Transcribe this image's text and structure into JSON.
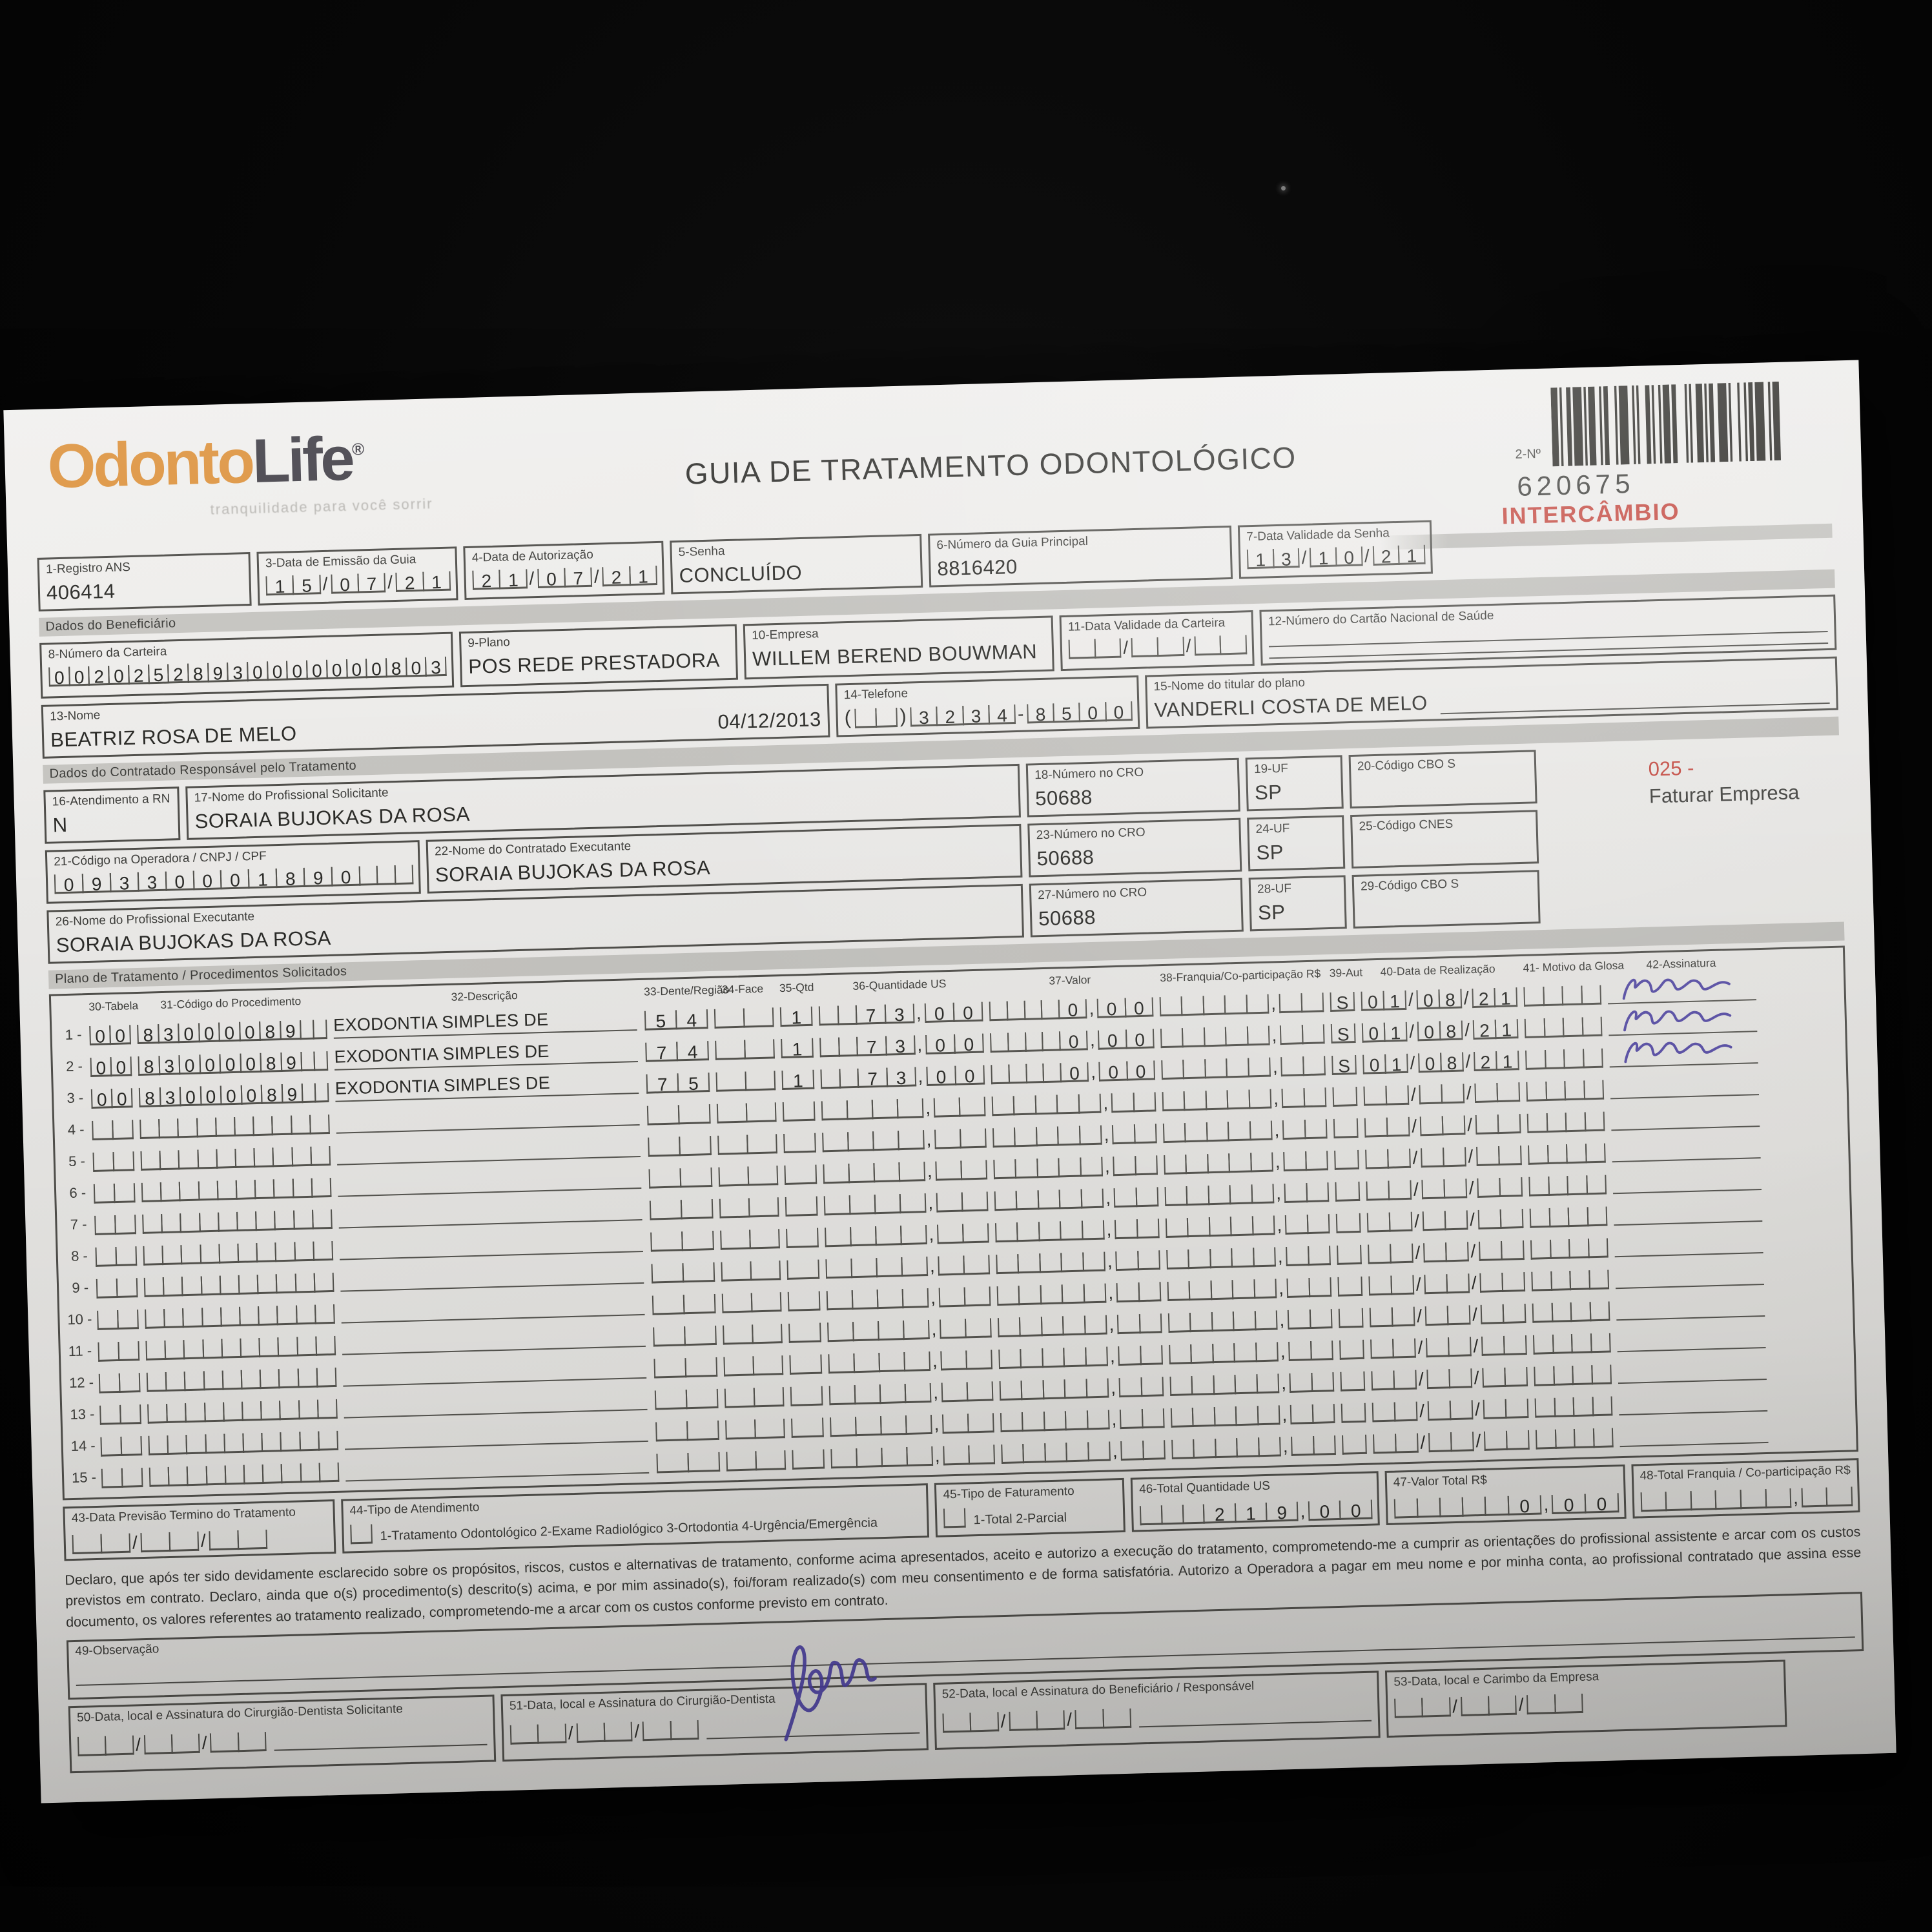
{
  "brand": {
    "logo_primary": "Odonto",
    "logo_secondary": "Life",
    "trademark": "®",
    "tagline": "tranquilidade para você sorrir"
  },
  "title": "GUIA DE TRATAMENTO ODONTOLÓGICO",
  "guide_number": {
    "label": "2-Nº",
    "value": "620675",
    "stamp": "INTERCÂMBIO"
  },
  "top_fields": {
    "registro_ans": {
      "label": "1-Registro ANS",
      "value": "406414"
    },
    "emissao": {
      "label": "3-Data de Emissão da Guia",
      "comb": {
        "g": [
          "15",
          "07",
          "21"
        ],
        "s": "/"
      }
    },
    "autorizacao": {
      "label": "4-Data de Autorização",
      "comb": {
        "g": [
          "21",
          "07",
          "21"
        ],
        "s": "/"
      }
    },
    "senha": {
      "label": "5-Senha",
      "value": "CONCLUÍDO"
    },
    "guia_principal": {
      "label": "6-Número da Guia Principal",
      "value": "8816420"
    },
    "validade_senha": {
      "label": "7-Data Validade da Senha",
      "comb": {
        "g": [
          "13",
          "10",
          "21"
        ],
        "s": "/"
      }
    }
  },
  "sections": {
    "beneficiario": "Dados do Beneficiário",
    "contratado": "Dados do Contratado Responsável pelo Tratamento",
    "plano": "Plano de Tratamento / Procedimentos Solicitados"
  },
  "beneficiario": {
    "carteira": {
      "label": "8-Número da Carteira",
      "comb": {
        "g": [
          "00202528930000000803"
        ],
        "s": ""
      }
    },
    "plano": {
      "label": "9-Plano",
      "value": "POS REDE PRESTADORA"
    },
    "empresa": {
      "label": "10-Empresa",
      "value": "WILLEM BEREND BOUWMAN"
    },
    "validade_carteira": {
      "label": "11-Data Validade da Carteira",
      "comb": {
        "g": [
          "  ",
          "  ",
          "  "
        ],
        "s": "/"
      }
    },
    "cartao_saude": {
      "label": "12-Número do Cartão Nacional de Saúde",
      "value": ""
    },
    "nome": {
      "label": "13-Nome",
      "value": "BEATRIZ ROSA DE MELO",
      "date": "04/12/2013"
    },
    "telefone": {
      "label": "14-Telefone",
      "open": "(",
      "close": ")",
      "ddd": {
        "g": [
          "  "
        ],
        "s": ""
      },
      "numero": {
        "g": [
          "3234",
          "8500"
        ],
        "s": "-"
      }
    },
    "titular": {
      "label": "15-Nome do titular do plano",
      "value": "VANDERLI COSTA DE MELO"
    }
  },
  "contratado": {
    "rn": {
      "label": "16-Atendimento a RN",
      "value": "N"
    },
    "solicitante": {
      "label": "17-Nome do Profissional Solicitante",
      "value": "SORAIA BUJOKAS DA ROSA"
    },
    "cro18": {
      "label": "18-Número no CRO",
      "value": "50688"
    },
    "uf19": {
      "label": "19-UF",
      "value": "SP"
    },
    "cbo20": {
      "label": "20-Código CBO S",
      "value": ""
    },
    "fatura_code": "025 -",
    "fatura_text": "Faturar Empresa",
    "cod_operadora": {
      "label": "21-Código na Operadora / CNPJ / CPF",
      "comb": {
        "g": [
          "09330001890   "
        ],
        "s": ""
      }
    },
    "executante": {
      "label": "22-Nome do Contratado Executante",
      "value": "SORAIA BUJOKAS DA ROSA"
    },
    "cro23": {
      "label": "23-Número no CRO",
      "value": "50688"
    },
    "uf24": {
      "label": "24-UF",
      "value": "SP"
    },
    "cnes25": {
      "label": "25-Código CNES",
      "value": ""
    },
    "prof_executante": {
      "label": "26-Nome do Profissional Executante",
      "value": "SORAIA BUJOKAS DA ROSA"
    },
    "cro27": {
      "label": "27-Número no CRO",
      "value": "50688"
    },
    "uf28": {
      "label": "28-UF",
      "value": "SP"
    },
    "cbo29": {
      "label": "29-Código CBO S",
      "value": ""
    }
  },
  "table": {
    "headers": [
      "30-Tabela",
      "31-Código do Procedimento",
      "32-Descrição",
      "33-Dente/Região",
      "34-Face",
      "35-Qtd",
      "36-Quantidade US",
      "37-Valor",
      "38-Franquia/Co-participação R$",
      "39-Aut",
      "40-Data de Realização",
      "41- Motivo da Glosa",
      "42-Assinatura"
    ],
    "rows": [
      {
        "num": "1",
        "tabela": "00",
        "codigo": "83000089",
        "descricao": "EXODONTIA SIMPLES DE",
        "dente": "54",
        "face": "",
        "qtd": "1",
        "qtd_us": "73,00",
        "valor": "0,00",
        "franquia": "",
        "aut": "S",
        "data": "01/08/21",
        "motivo": "",
        "signed": true
      },
      {
        "num": "2",
        "tabela": "00",
        "codigo": "83000089",
        "descricao": "EXODONTIA SIMPLES DE",
        "dente": "74",
        "face": "",
        "qtd": "1",
        "qtd_us": "73,00",
        "valor": "0,00",
        "franquia": "",
        "aut": "S",
        "data": "01/08/21",
        "motivo": "",
        "signed": true
      },
      {
        "num": "3",
        "tabela": "00",
        "codigo": "83000089",
        "descricao": "EXODONTIA SIMPLES DE",
        "dente": "75",
        "face": "",
        "qtd": "1",
        "qtd_us": "73,00",
        "valor": "0,00",
        "franquia": "",
        "aut": "S",
        "data": "01/08/21",
        "motivo": "",
        "signed": true
      },
      {
        "num": "4",
        "tabela": "",
        "codigo": "",
        "descricao": "",
        "dente": "",
        "face": "",
        "qtd": "",
        "qtd_us": "",
        "valor": "",
        "franquia": "",
        "aut": "",
        "data": "",
        "motivo": "",
        "signed": false
      },
      {
        "num": "5",
        "tabela": "",
        "codigo": "",
        "descricao": "",
        "dente": "",
        "face": "",
        "qtd": "",
        "qtd_us": "",
        "valor": "",
        "franquia": "",
        "aut": "",
        "data": "",
        "motivo": "",
        "signed": false
      },
      {
        "num": "6",
        "tabela": "",
        "codigo": "",
        "descricao": "",
        "dente": "",
        "face": "",
        "qtd": "",
        "qtd_us": "",
        "valor": "",
        "franquia": "",
        "aut": "",
        "data": "",
        "motivo": "",
        "signed": false
      },
      {
        "num": "7",
        "tabela": "",
        "codigo": "",
        "descricao": "",
        "dente": "",
        "face": "",
        "qtd": "",
        "qtd_us": "",
        "valor": "",
        "franquia": "",
        "aut": "",
        "data": "",
        "motivo": "",
        "signed": false
      },
      {
        "num": "8",
        "tabela": "",
        "codigo": "",
        "descricao": "",
        "dente": "",
        "face": "",
        "qtd": "",
        "qtd_us": "",
        "valor": "",
        "franquia": "",
        "aut": "",
        "data": "",
        "motivo": "",
        "signed": false
      },
      {
        "num": "9",
        "tabela": "",
        "codigo": "",
        "descricao": "",
        "dente": "",
        "face": "",
        "qtd": "",
        "qtd_us": "",
        "valor": "",
        "franquia": "",
        "aut": "",
        "data": "",
        "motivo": "",
        "signed": false
      },
      {
        "num": "10",
        "tabela": "",
        "codigo": "",
        "descricao": "",
        "dente": "",
        "face": "",
        "qtd": "",
        "qtd_us": "",
        "valor": "",
        "franquia": "",
        "aut": "",
        "data": "",
        "motivo": "",
        "signed": false
      },
      {
        "num": "11",
        "tabela": "",
        "codigo": "",
        "descricao": "",
        "dente": "",
        "face": "",
        "qtd": "",
        "qtd_us": "",
        "valor": "",
        "franquia": "",
        "aut": "",
        "data": "",
        "motivo": "",
        "signed": false
      },
      {
        "num": "12",
        "tabela": "",
        "codigo": "",
        "descricao": "",
        "dente": "",
        "face": "",
        "qtd": "",
        "qtd_us": "",
        "valor": "",
        "franquia": "",
        "aut": "",
        "data": "",
        "motivo": "",
        "signed": false
      },
      {
        "num": "13",
        "tabela": "",
        "codigo": "",
        "descricao": "",
        "dente": "",
        "face": "",
        "qtd": "",
        "qtd_us": "",
        "valor": "",
        "franquia": "",
        "aut": "",
        "data": "",
        "motivo": "",
        "signed": false
      },
      {
        "num": "14",
        "tabela": "",
        "codigo": "",
        "descricao": "",
        "dente": "",
        "face": "",
        "qtd": "",
        "qtd_us": "",
        "valor": "",
        "franquia": "",
        "aut": "",
        "data": "",
        "motivo": "",
        "signed": false
      },
      {
        "num": "15",
        "tabela": "",
        "codigo": "",
        "descricao": "",
        "dente": "",
        "face": "",
        "qtd": "",
        "qtd_us": "",
        "valor": "",
        "franquia": "",
        "aut": "",
        "data": "",
        "motivo": "",
        "signed": false
      }
    ]
  },
  "totals": {
    "previsao": {
      "label": "43-Data Previsão Termino do Tratamento",
      "comb": {
        "g": [
          "  ",
          "  ",
          "  "
        ],
        "s": "/"
      }
    },
    "tipo_atendimento": {
      "label": "44-Tipo de Atendimento",
      "options": "1-Tratamento Odontológico  2-Exame Radiológico  3-Ortodontia  4-Urgência/Emergência"
    },
    "tipo_faturamento": {
      "label": "45-Tipo de Faturamento",
      "options": "1-Total  2-Parcial"
    },
    "total_us": {
      "label": "46-Total Quantidade US",
      "comb": {
        "g": [
          "   219",
          "00"
        ],
        "s": ","
      }
    },
    "valor_total": {
      "label": "47-Valor Total R$",
      "comb": {
        "g": [
          "     0",
          "00"
        ],
        "s": ","
      }
    },
    "total_franquia": {
      "label": "48-Total Franquia / Co-participação R$",
      "comb": {
        "g": [
          "      ",
          "  "
        ],
        "s": ","
      }
    }
  },
  "declaration": "Declaro, que após ter sido devidamente esclarecido sobre os propósitos, riscos, custos e alternativas de tratamento, conforme acima apresentados, aceito e autorizo a execução do tratamento, comprometendo-me a cumprir as orientações do profissional assistente e arcar com os custos previstos em contrato. Declaro, ainda que o(s) procedimento(s) descrito(s) acima, e por mim assinado(s), foi/foram realizado(s) com meu consentimento e de forma satisfatória. Autorizo a Operadora a pagar em meu nome e por minha conta, ao profissional contratado que assina esse documento, os valores referentes ao tratamento realizado, comprometendo-me a arcar com os custos conforme previsto em contrato.",
  "observacao": {
    "label": "49-Observação"
  },
  "signature_boxes": {
    "s50": {
      "label": "50-Data, local e Assinatura do Cirurgião-Dentista Solicitante",
      "comb": {
        "g": [
          "  ",
          "  ",
          "  "
        ],
        "s": "/"
      }
    },
    "s51": {
      "label": "51-Data, local e Assinatura do Cirurgião-Dentista",
      "comb": {
        "g": [
          "  ",
          "  ",
          "  "
        ],
        "s": "/"
      }
    },
    "s52": {
      "label": "52-Data, local e Assinatura do Beneficiário / Responsável",
      "comb": {
        "g": [
          "  ",
          "  ",
          "  "
        ],
        "s": "/"
      }
    },
    "s53": {
      "label": "53-Data, local e Carimbo da Empresa",
      "comb": {
        "g": [
          "  ",
          "  ",
          "  "
        ],
        "s": "/"
      }
    }
  },
  "colors": {
    "accent_orange": "#dd9440",
    "accent_red": "#c2453c",
    "ink_blue": "#4a3f9e",
    "paper": "#e9e8e6"
  }
}
